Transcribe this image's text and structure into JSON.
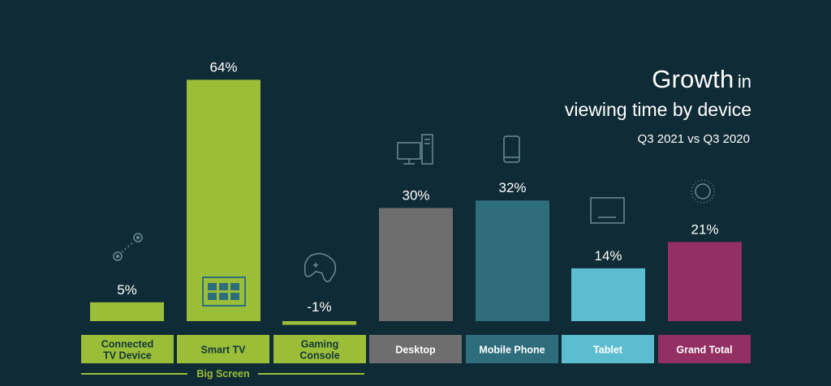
{
  "title": {
    "growth": "Growth",
    "in": "in",
    "line2": "viewing time by device",
    "subtitle": "Q3 2021 vs Q3 2020"
  },
  "group_label": "Big Screen",
  "colors": {
    "background": "#0f2b35",
    "green": "#9bbe38",
    "desktop": "#6e6e6e",
    "mobile": "#2e6e7c",
    "tablet": "#5cbdd0",
    "grand_total": "#932f62",
    "green_label_text": "#14353a",
    "icon_stroke": "#6c8c92"
  },
  "chart_data": {
    "type": "bar",
    "title": "Growth in viewing time by device",
    "subtitle": "Q3 2021 vs Q3 2020",
    "categories": [
      "Connected TV Device",
      "Smart TV",
      "Gaming Console",
      "Desktop",
      "Mobile Phone",
      "Tablet",
      "Grand Total"
    ],
    "values": [
      5,
      64,
      -1,
      30,
      32,
      14,
      21
    ],
    "data_labels": [
      "5%",
      "64%",
      "-1%",
      "30%",
      "32%",
      "14%",
      "21%"
    ],
    "label_lines": [
      [
        "Connected",
        "TV Device"
      ],
      [
        "Smart TV"
      ],
      [
        "Gaming",
        "Console"
      ],
      [
        "Desktop"
      ],
      [
        "Mobile Phone"
      ],
      [
        "Tablet"
      ],
      [
        "Grand Total"
      ]
    ],
    "bar_colors": [
      "#9bbe38",
      "#9bbe38",
      "#9bbe38",
      "#6e6e6e",
      "#2e6e7c",
      "#5cbdd0",
      "#932f62"
    ],
    "icons": [
      "connected-device-icon",
      "smart-tv-icon",
      "gamepad-icon",
      "desktop-computer-icon",
      "mobile-phone-icon",
      "tablet-icon",
      "circle-total-icon"
    ],
    "xlabel": "",
    "ylabel": "",
    "ylim": [
      -1,
      64
    ],
    "grid": false,
    "legend": "none"
  }
}
